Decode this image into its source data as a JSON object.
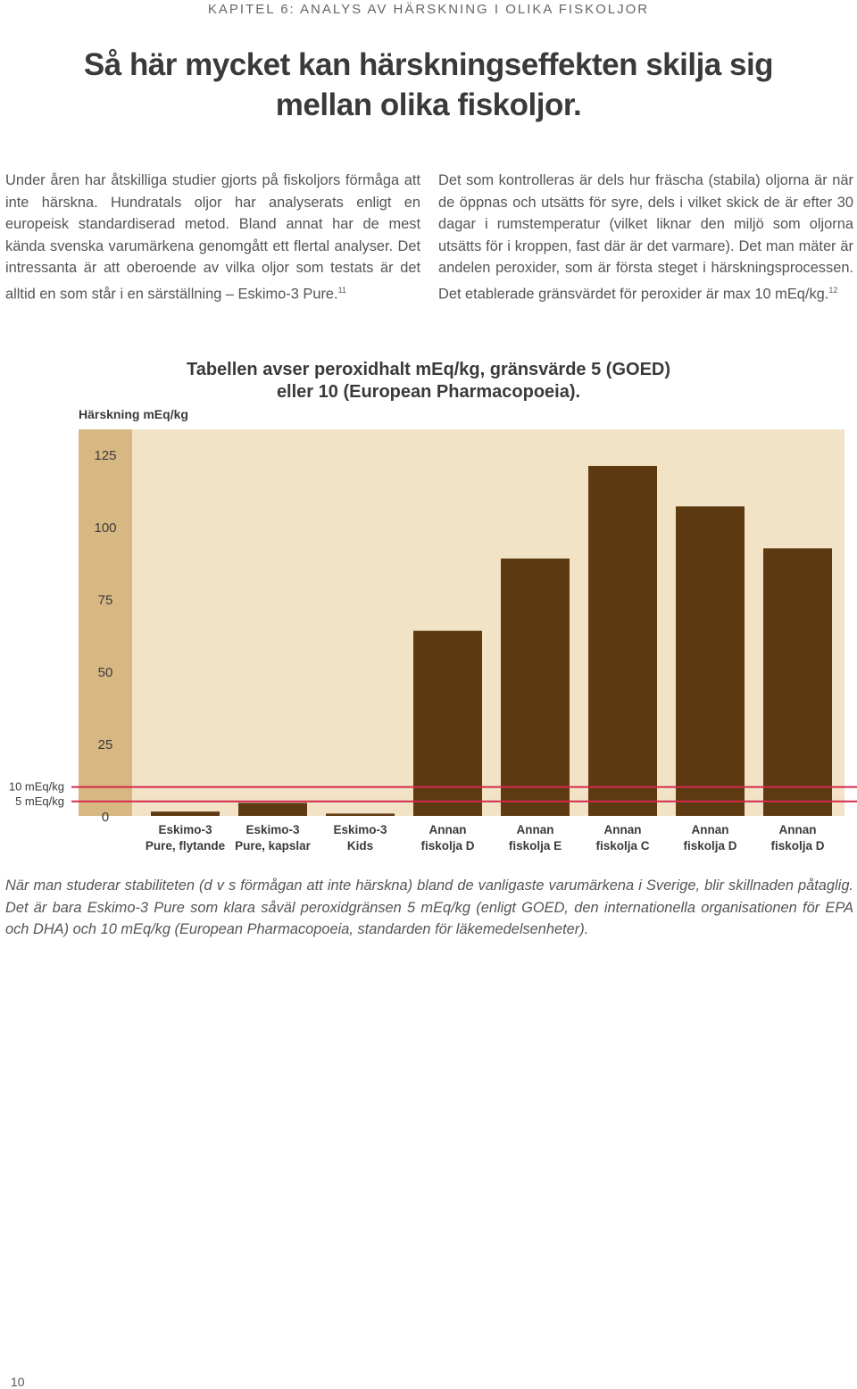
{
  "header": {
    "chapter": "KAPITEL 6: ANALYS AV HÄRSKNING I OLIKA FISKOLJOR"
  },
  "title": {
    "line1": "Så här mycket kan härskningseffekten skilja sig",
    "line2": "mellan olika fiskoljor."
  },
  "intro": {
    "left": "Under åren har åtskilliga studier gjorts på fiskoljors förmåga att inte härskna. Hundratals oljor har analyserats enligt en europeisk standardiserad metod. Bland annat har de mest kända svenska varumärkena genomgått ett flertal analyser. Det intressanta är att oberoende av vilka oljor som testats är det alltid en som står i en särställning – Eskimo-3 Pure.",
    "left_ref": "11",
    "right": "Det som kontrolleras är dels hur fräscha (stabila) oljorna är när de öppnas och utsätts för syre, dels i vilket skick de är efter 30 dagar i rumstemperatur (vilket liknar den miljö som oljorna utsätts för i kroppen, fast där är det varmare). Det man mäter är andelen peroxider, som är första steget i härskningsprocessen. Det etablerade gränsvärdet för peroxider är max 10 mEq/kg.",
    "right_ref": "12"
  },
  "chart_data": {
    "type": "bar",
    "title": "Tabellen avser peroxidhalt mEq/kg, gränsvärde 5 (GOED) eller 10 (European Pharmacopoeia).",
    "ylabel": "Härskning mEq/kg",
    "xlabel": "",
    "ylim": [
      0,
      125
    ],
    "yticks": [
      0,
      25,
      50,
      75,
      100,
      125
    ],
    "grid": false,
    "categories": [
      [
        "Eskimo-3",
        "Pure, flytande"
      ],
      [
        "Eskimo-3",
        "Pure, kapslar"
      ],
      [
        "Eskimo-3",
        "Kids"
      ],
      [
        "Annan",
        "fiskolja D"
      ],
      [
        "Annan",
        "fiskolja E"
      ],
      [
        "Annan",
        "fiskolja C"
      ],
      [
        "Annan",
        "fiskolja D"
      ],
      [
        "Annan",
        "fiskolja D"
      ]
    ],
    "values": [
      1.5,
      4.5,
      0.8,
      64,
      89,
      121,
      107,
      92.5
    ],
    "reference_lines": [
      {
        "label": "10 mEq/kg",
        "value": 10
      },
      {
        "label": "5 mEq/kg",
        "value": 5
      }
    ],
    "colors": {
      "bar": "#5e3a12",
      "plot_bg": "#f3e3c6",
      "axis_band": "#d7b883",
      "limit_line": "#d42a4c"
    }
  },
  "caption": "När man studerar stabiliteten (d v s förmågan att inte härskna) bland de vanligaste varumärkena i Sverige, blir skillnaden påtaglig. Det är bara Eskimo-3 Pure som klara såväl peroxidgränsen 5 mEq/kg (enligt GOED, den internationella organisationen för EPA och DHA) och 10 mEq/kg (European Pharmacopoeia, standarden för läkemedelsenheter).",
  "page_number": "10"
}
